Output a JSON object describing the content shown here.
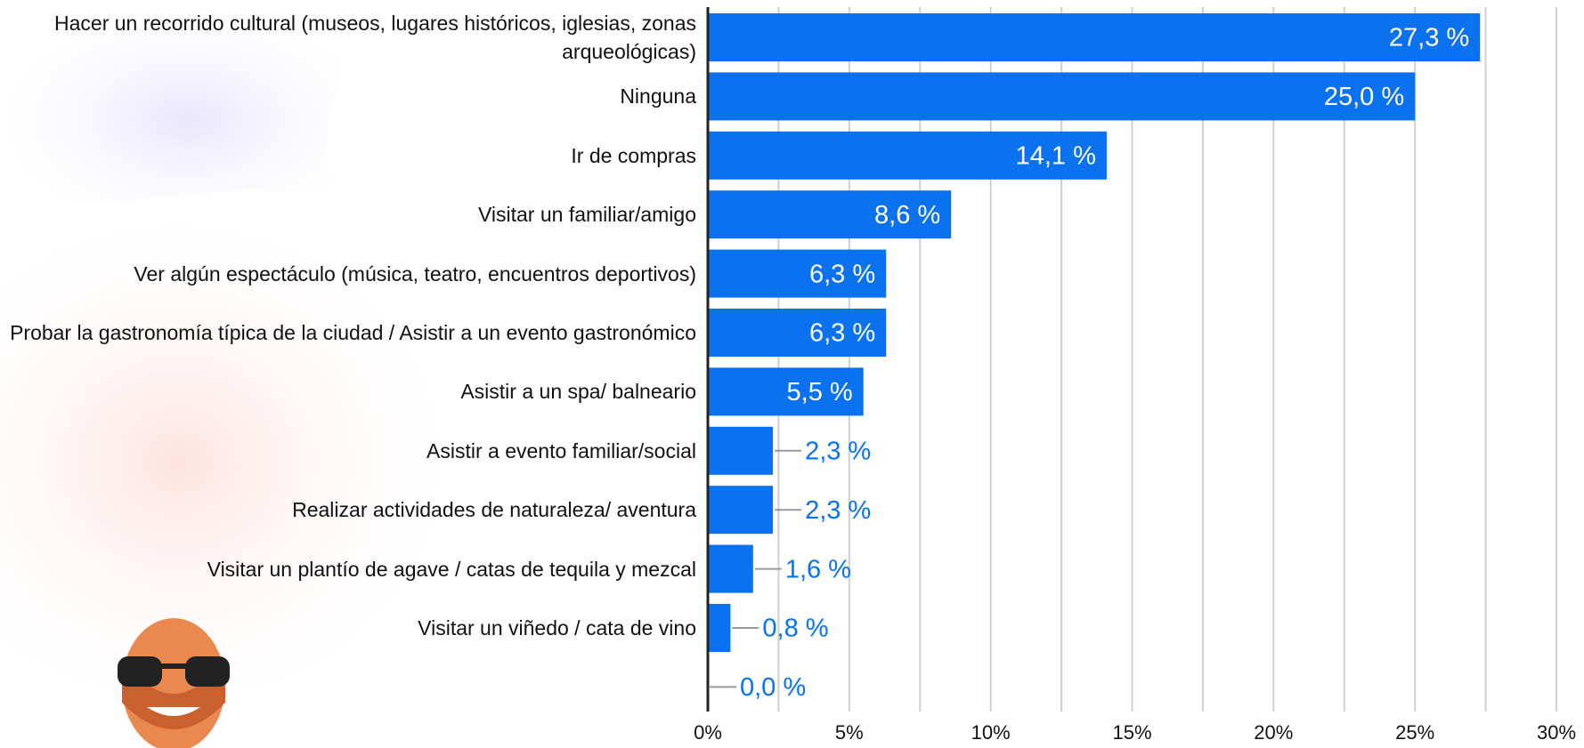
{
  "chart_data": {
    "type": "hbar",
    "categories": [
      "Hacer un recorrido cultural (museos, lugares históricos, iglesias, zonas arqueológicas)",
      "Ninguna",
      "Ir de compras",
      "Visitar un familiar/amigo",
      "Ver algún espectáculo (música, teatro, encuentros deportivos)",
      "Probar la gastronomía típica de la ciudad / Asistir a un evento gastronómico",
      "Asistir a un spa/ balneario",
      "Asistir a evento familiar/social",
      "Realizar actividades de naturaleza/ aventura",
      "Visitar un plantío de agave / catas de tequila y mezcal",
      "Visitar un viñedo / cata de vino",
      null
    ],
    "values": [
      27.3,
      25.0,
      14.1,
      8.6,
      6.3,
      6.3,
      5.5,
      2.3,
      2.3,
      1.6,
      0.8,
      0.0
    ],
    "value_labels": [
      "27,3 %",
      "25,0 %",
      "14,1 %",
      "8,6 %",
      "6,3 %",
      "6,3 %",
      "5,5 %",
      "2,3 %",
      "2,3 %",
      "1,6 %",
      "0,8 %",
      "0,0 %"
    ],
    "color": "#0a72ef",
    "xlim": [
      0,
      30
    ],
    "xticks": [
      {
        "value": 0,
        "label": "0%"
      },
      {
        "value": 5,
        "label": "5%"
      },
      {
        "value": 10,
        "label": "10%"
      },
      {
        "value": 15,
        "label": "15%"
      },
      {
        "value": 20,
        "label": "20%"
      },
      {
        "value": 25,
        "label": "25%"
      },
      {
        "value": 30,
        "label": "30%"
      }
    ],
    "minor_xticks": [
      2.5,
      7.5,
      12.5,
      17.5,
      22.5,
      27.5
    ],
    "grid": true
  }
}
